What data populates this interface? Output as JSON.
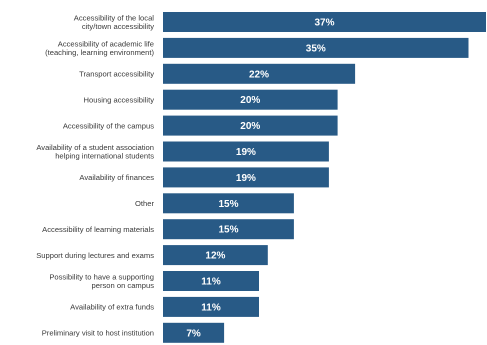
{
  "chart_data": {
    "type": "bar",
    "orientation": "horizontal",
    "categories": [
      [
        "Accessibility of the local",
        "city/town accessibility"
      ],
      [
        "Accessibility of academic life",
        "(teaching, learning environment)"
      ],
      [
        "Transport accessibility"
      ],
      [
        "Housing accessibility"
      ],
      [
        "Accessibility of the campus"
      ],
      [
        "Availability of a student association",
        "helping international students"
      ],
      [
        "Availability of finances"
      ],
      [
        "Other"
      ],
      [
        "Accessibility of learning materials"
      ],
      [
        "Support during lectures and exams"
      ],
      [
        "Possibility to have a supporting",
        "person on campus"
      ],
      [
        "Availability of extra funds"
      ],
      [
        "Preliminary visit to host institution"
      ]
    ],
    "values": [
      37,
      35,
      22,
      20,
      20,
      19,
      19,
      15,
      15,
      12,
      11,
      11,
      7
    ],
    "value_labels": [
      "37%",
      "35%",
      "22%",
      "20%",
      "20%",
      "19%",
      "19%",
      "15%",
      "15%",
      "12%",
      "11%",
      "11%",
      "7%"
    ],
    "unit": "%",
    "xlim": [
      0,
      37
    ],
    "grid": false,
    "legend": "none",
    "bar_color": "#285a86",
    "label_color": "#ffffff"
  }
}
